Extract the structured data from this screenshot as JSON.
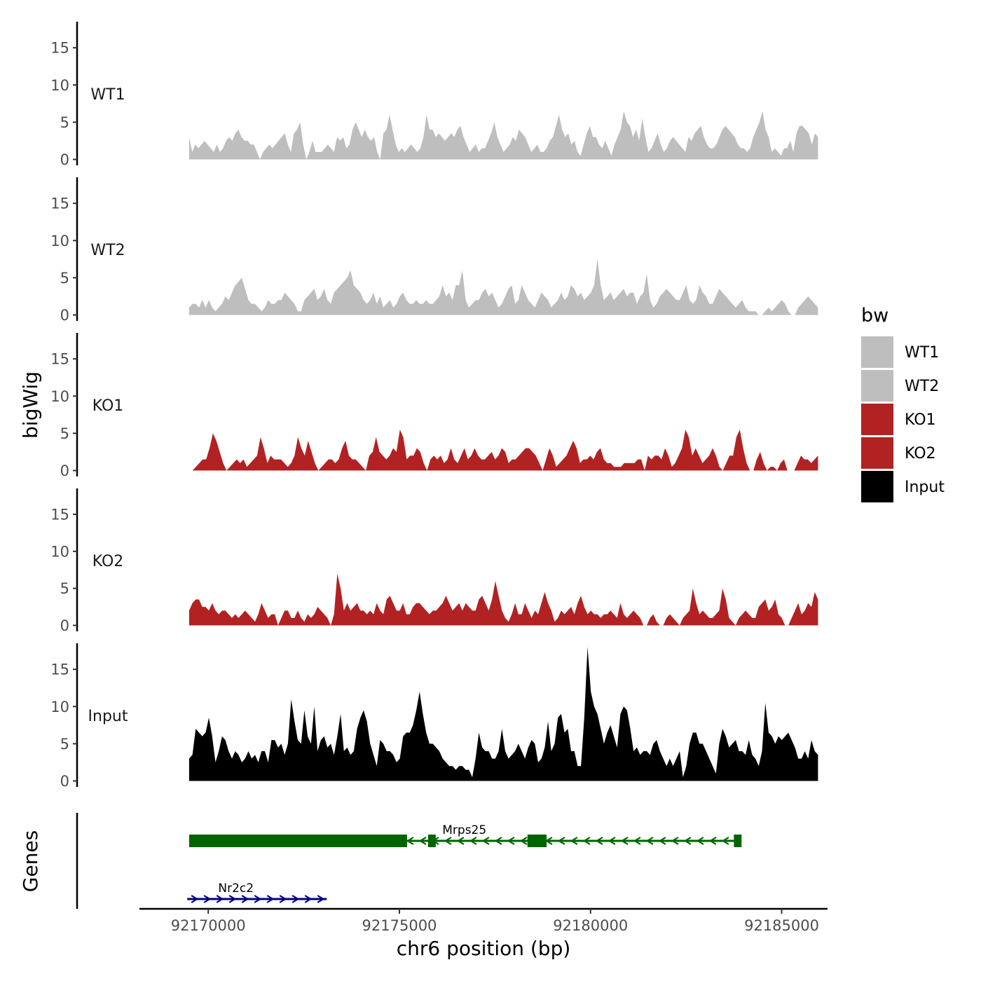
{
  "chart_data": {
    "type": "area",
    "chromosome": "chr6",
    "xlabel": "chr6 position (bp)",
    "ylabel_tracks": "bigWig",
    "ylabel_genes": "Genes",
    "xlim": [
      92168200,
      92186200
    ],
    "x_ticks": [
      92170000,
      92175000,
      92180000,
      92185000
    ],
    "x_tick_labels": [
      "92170000",
      "92175000",
      "92180000",
      "92185000"
    ],
    "ylim": [
      0,
      18.5
    ],
    "y_ticks": [
      0,
      5,
      10,
      15
    ],
    "y_tick_labels": [
      "0",
      "5",
      "10",
      "15"
    ],
    "bin_start": 92169500,
    "bin_end": 92185950,
    "legend": {
      "title": "bw",
      "position": "right",
      "entries": [
        {
          "label": "WT1",
          "color": "#bebebe"
        },
        {
          "label": "WT2",
          "color": "#bebebe"
        },
        {
          "label": "KO1",
          "color": "#b22222"
        },
        {
          "label": "KO2",
          "color": "#b22222"
        },
        {
          "label": "Input",
          "color": "#000000"
        }
      ]
    },
    "series": [
      {
        "name": "WT1",
        "color": "#bebebe",
        "values": [
          3,
          1,
          2,
          1.5,
          2,
          2.5,
          2,
          1.5,
          1,
          2,
          1,
          1.5,
          2.5,
          3,
          2.5,
          3.5,
          4,
          3,
          2.5,
          2.5,
          2,
          2,
          1,
          0,
          1,
          1.5,
          2,
          1.5,
          2,
          2.5,
          3,
          3.5,
          2,
          1,
          3.5,
          4,
          5,
          2,
          0,
          1,
          2.5,
          1,
          1,
          1,
          1.5,
          2,
          1.5,
          1,
          3,
          2.5,
          3,
          1.5,
          2,
          4,
          5,
          4,
          3,
          4,
          3,
          2.5,
          3,
          1,
          0,
          3.5,
          4,
          6,
          4,
          2,
          1,
          1.5,
          1,
          1.5,
          2,
          1.5,
          1,
          1.5,
          3,
          6,
          4,
          4,
          3,
          3.5,
          3,
          2.5,
          3,
          3.5,
          3,
          4,
          4.5,
          3,
          2,
          1,
          1.5,
          2,
          1,
          1.5,
          1.5,
          2.5,
          3.5,
          5,
          3,
          2,
          1,
          1.5,
          2,
          3,
          2.5,
          4,
          3.5,
          3,
          2,
          1,
          1.5,
          2,
          1,
          1,
          1.5,
          2.5,
          3,
          4.5,
          6,
          4,
          3,
          3.5,
          2,
          2.5,
          1,
          0.5,
          2,
          3.5,
          4.5,
          3,
          3,
          2,
          1.5,
          2.5,
          1.5,
          0.5,
          2,
          3,
          4,
          6.5,
          5,
          4.5,
          3,
          4,
          2.5,
          5.5,
          3,
          1,
          1.5,
          2.5,
          3.5,
          2,
          1,
          1.5,
          2.5,
          3,
          2.5,
          2,
          1.5,
          1,
          3,
          2.5,
          3.5,
          4,
          4.5,
          3,
          2,
          1.5,
          1.5,
          2,
          3,
          4,
          4.5,
          4,
          3.5,
          3,
          2,
          1.5,
          1.5,
          1,
          1.5,
          3,
          4,
          5,
          6.5,
          4,
          3,
          1,
          1.5,
          1,
          0.5,
          1.5,
          1.5,
          2.5,
          1,
          3.5,
          4.5,
          4.5,
          4,
          3.5,
          2,
          3.5,
          3
        ]
      },
      {
        "name": "WT2",
        "color": "#bebebe",
        "values": [
          1,
          1.5,
          1.5,
          1,
          2,
          1,
          2,
          1,
          0.5,
          1,
          1.5,
          2.5,
          2,
          3,
          4,
          4.5,
          5,
          3.5,
          2,
          1.5,
          1.5,
          1,
          0.5,
          1,
          2,
          1.5,
          1.5,
          2,
          2,
          3,
          2.5,
          2,
          1.5,
          0.5,
          0.5,
          2,
          2.5,
          3,
          3.5,
          2,
          2.5,
          3.5,
          2,
          1.5,
          3,
          3.5,
          4,
          4.5,
          5,
          6,
          4,
          3.5,
          3,
          2,
          1.5,
          2,
          3,
          1.5,
          2.5,
          1,
          1.5,
          2,
          1,
          1.5,
          2.5,
          3,
          2,
          1.5,
          1.5,
          2,
          1.5,
          1.5,
          2,
          1.5,
          1.5,
          2,
          2.5,
          4,
          2.5,
          3,
          2,
          4,
          4,
          6,
          2,
          1,
          1.5,
          2,
          2,
          3,
          3.5,
          2.5,
          3,
          2,
          1,
          1.5,
          2.5,
          3.5,
          4,
          1.5,
          2,
          4,
          3,
          2,
          1.5,
          1,
          2,
          3,
          2.5,
          2,
          1,
          1.5,
          2,
          3,
          2,
          2.5,
          4,
          3.5,
          2.5,
          3,
          2,
          2.5,
          3,
          4,
          7.5,
          4,
          2,
          2.5,
          3,
          2,
          2.5,
          3,
          3.5,
          2.5,
          3,
          3,
          1.5,
          2.5,
          3,
          5.5,
          2,
          1,
          1.5,
          2.5,
          3,
          3.5,
          3,
          2.5,
          2,
          2,
          3,
          4,
          2,
          1.5,
          2,
          4,
          3,
          2.5,
          1.5,
          1.5,
          2.5,
          3.5,
          3,
          2.5,
          2,
          1.5,
          1,
          1.5,
          2,
          1,
          0.5,
          0.5,
          0.5,
          0,
          0,
          0.5,
          1,
          0.5,
          1,
          1.5,
          2,
          1.5,
          0.5,
          0,
          0,
          1,
          1.5,
          2,
          2.5,
          2,
          1.5,
          1
        ]
      },
      {
        "name": "KO1",
        "color": "#b22222",
        "values": [
          0,
          0,
          0.5,
          1,
          1.5,
          1.5,
          3,
          5,
          4,
          2.5,
          1,
          0,
          0.5,
          1,
          1.5,
          1,
          1.5,
          0.5,
          1,
          1.5,
          2,
          4.5,
          3,
          1,
          2,
          1.5,
          1.5,
          1.5,
          1,
          0.5,
          1,
          2,
          4.5,
          3,
          2,
          4,
          2.5,
          1,
          0,
          0.5,
          1,
          1.5,
          1.5,
          1,
          1.5,
          3,
          4,
          2,
          1.5,
          1.5,
          1,
          0.5,
          0,
          2,
          2.5,
          4.5,
          2.5,
          2,
          1.5,
          2,
          3,
          2.5,
          5.5,
          4.5,
          1.5,
          2,
          2,
          3,
          2.5,
          1,
          0,
          1.5,
          2,
          1.5,
          2,
          1,
          1.5,
          3,
          1.5,
          1,
          2,
          3,
          1.5,
          2,
          3,
          2,
          1.5,
          1.5,
          2,
          2.5,
          1.5,
          2,
          3,
          2.5,
          1,
          1.5,
          1.5,
          2,
          2.5,
          3,
          3,
          2.5,
          2,
          1,
          0,
          1.5,
          3,
          2,
          0.5,
          1,
          1.5,
          2,
          3,
          4,
          3,
          1,
          1.5,
          1.5,
          2,
          1.5,
          2.5,
          3,
          1.5,
          1,
          1,
          0.5,
          0.5,
          0.5,
          1,
          1,
          1,
          1,
          1.5,
          1.5,
          0,
          2,
          1.5,
          2,
          2,
          1.5,
          3,
          2,
          0.5,
          1,
          2,
          3,
          5.5,
          4.5,
          2,
          3,
          2,
          1,
          1.5,
          2,
          3,
          2,
          0.5,
          0,
          1,
          2,
          2,
          4.5,
          5.5,
          3,
          1,
          0,
          0,
          1.5,
          2.5,
          1,
          0,
          0.5,
          0.5,
          0,
          1,
          1.5,
          0,
          0,
          0,
          1,
          2,
          1.5,
          1.5,
          1,
          1.5,
          2
        ]
      },
      {
        "name": "KO2",
        "color": "#b22222",
        "values": [
          2,
          3,
          3.5,
          3.5,
          2.5,
          2.5,
          2,
          3,
          2,
          1.5,
          2,
          2,
          1.5,
          1,
          1.5,
          1,
          1.5,
          2,
          1.5,
          1,
          0.5,
          1.5,
          3,
          2,
          1,
          1.5,
          1.5,
          0,
          1,
          2,
          2,
          1,
          1,
          2,
          1,
          0.5,
          1.5,
          1,
          1.5,
          2.5,
          2,
          1.5,
          1,
          0,
          1.5,
          7,
          5,
          2,
          3,
          2,
          2.5,
          3,
          2,
          2,
          1.5,
          2,
          1.5,
          3,
          2,
          1.5,
          3.5,
          4,
          3,
          2,
          2,
          3,
          1.5,
          1.5,
          2.5,
          3,
          3,
          2.5,
          2,
          1.5,
          2,
          2,
          2.5,
          3,
          4,
          3,
          2,
          2.5,
          3,
          2,
          3,
          2.5,
          2,
          2,
          3.5,
          4,
          3,
          2,
          3.5,
          6,
          4,
          2,
          1,
          0.5,
          1.5,
          3,
          1.5,
          1.5,
          3,
          2,
          1,
          2,
          1.5,
          3,
          4.5,
          3,
          2,
          0.5,
          1,
          2,
          1.5,
          2,
          2.5,
          1.5,
          3,
          4,
          2.5,
          1.5,
          2,
          1.5,
          1.5,
          1,
          1.5,
          1.5,
          2,
          1.5,
          1,
          3,
          1.5,
          1,
          1.5,
          2,
          1.5,
          1,
          0,
          0,
          1,
          1.5,
          0.5,
          0,
          0,
          1,
          1.5,
          1,
          0.5,
          0,
          1,
          1.5,
          2,
          5,
          3,
          1.5,
          2,
          1.5,
          1,
          1,
          1.5,
          2,
          5,
          3.5,
          1,
          0.5,
          0,
          1,
          1.5,
          2,
          1.5,
          1,
          1,
          2.5,
          3,
          3.5,
          2,
          2.5,
          3.5,
          1.5,
          1,
          0,
          0,
          1,
          2,
          3,
          1.5,
          2,
          3,
          2.5,
          4.5,
          3.5
        ]
      },
      {
        "name": "Input",
        "color": "#000000",
        "values": [
          3,
          3.5,
          7,
          6.5,
          6,
          6.5,
          8.5,
          6,
          2.5,
          4,
          6,
          5.5,
          4,
          3,
          4,
          3.5,
          2.5,
          3,
          4,
          3,
          3.5,
          2.5,
          4,
          4,
          2.5,
          5.5,
          5.5,
          4.5,
          5,
          3.5,
          5,
          11,
          8,
          5.5,
          5,
          9.5,
          6,
          5,
          10,
          4,
          5.5,
          6,
          4.5,
          5,
          3.5,
          6,
          9,
          4,
          4.5,
          3.5,
          4,
          7,
          8.5,
          9.5,
          8,
          5,
          3.5,
          2,
          5.5,
          5,
          4,
          4,
          3.5,
          2.5,
          3,
          6,
          6.5,
          6.5,
          7.5,
          9.5,
          12,
          9,
          6.5,
          5,
          5,
          4.5,
          4,
          3,
          2.5,
          2,
          2,
          1.5,
          2,
          2,
          1.5,
          1.5,
          0.5,
          3,
          6.5,
          4.5,
          4,
          4,
          3,
          3,
          4,
          7,
          4,
          3,
          3.5,
          4,
          5,
          4,
          3,
          4.5,
          5.5,
          5,
          2.5,
          3,
          4.5,
          8,
          4,
          5,
          8.5,
          9,
          6.5,
          7,
          4,
          4,
          2,
          2,
          8.5,
          18,
          12,
          10,
          9,
          7,
          5,
          6.5,
          7.5,
          6,
          4.5,
          9,
          10,
          9.5,
          7,
          4,
          4.5,
          3.5,
          4,
          4,
          3.5,
          5,
          5.5,
          4,
          3,
          2,
          3,
          2,
          3,
          4,
          0.5,
          2,
          5,
          6.5,
          6.5,
          5,
          5,
          4,
          3,
          2,
          1,
          5,
          7,
          6,
          4.5,
          5,
          5.5,
          4,
          4,
          3.5,
          5.5,
          3.5,
          3,
          2,
          4,
          10.5,
          6.5,
          6,
          5,
          6,
          5.5,
          6,
          6.5,
          5.5,
          4.5,
          3,
          3,
          4,
          3,
          5.5,
          4,
          3.5
        ]
      }
    ],
    "genes": [
      {
        "name": "Nr2c2",
        "strand": "+",
        "color": "#000080",
        "start": 92169450,
        "end": 92173100,
        "exons": []
      },
      {
        "name": "Mrps25",
        "strand": "-",
        "color": "#006400",
        "start": 92169500,
        "end": 92183950,
        "exons": [
          [
            92169500,
            92175200
          ],
          [
            92175750,
            92175950
          ],
          [
            92178350,
            92178850
          ],
          [
            92183750,
            92183950
          ]
        ]
      }
    ]
  }
}
